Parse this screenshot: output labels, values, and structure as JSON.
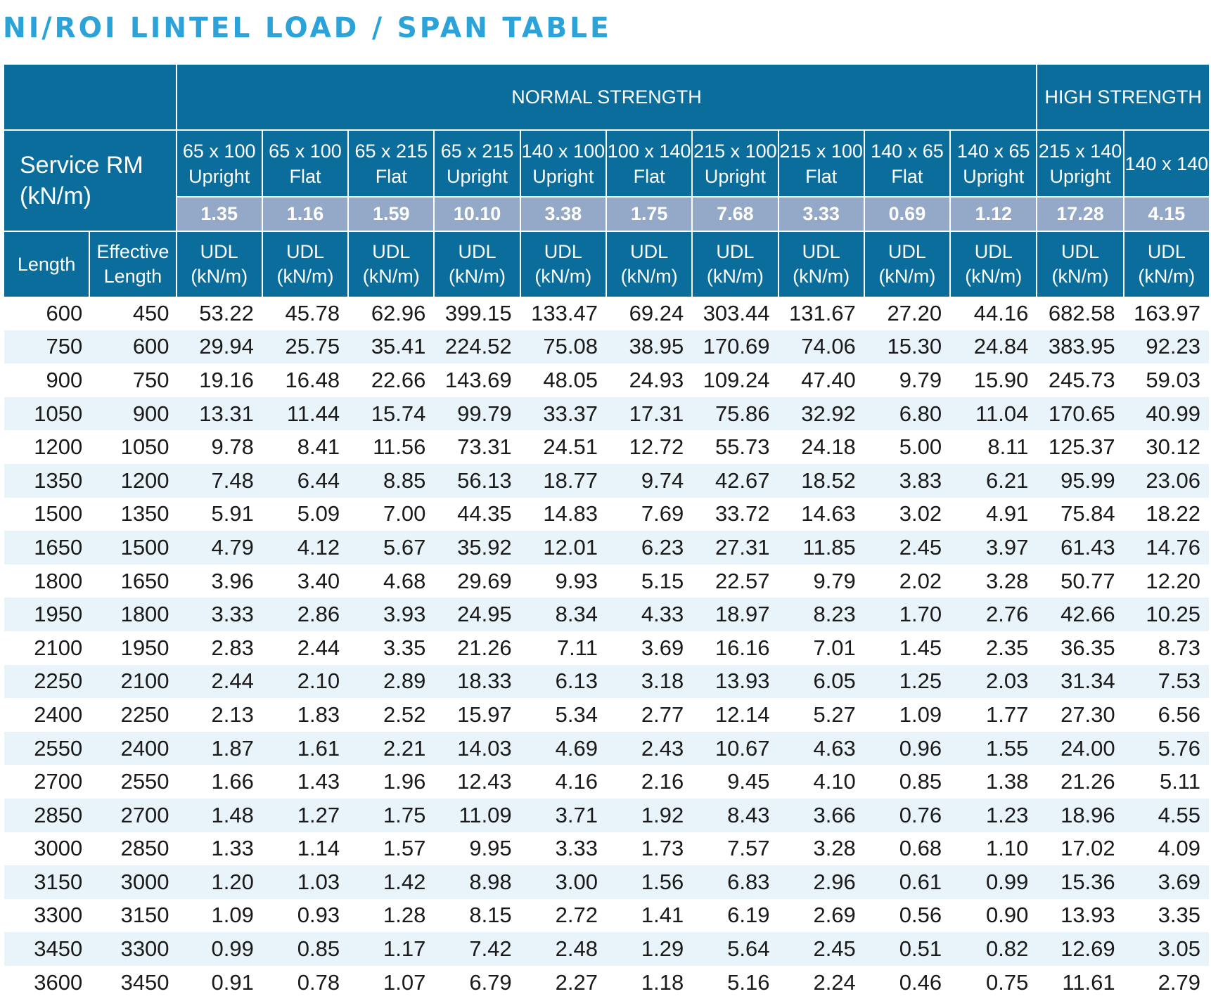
{
  "title": "NI/ROI LINTEL LOAD / SPAN TABLE",
  "colors": {
    "title": "#2ba3d9",
    "header": "#0b6d9c",
    "rm_row": "#93a9c7",
    "stripe": "#e9f3fa"
  },
  "header": {
    "normal_strength": "NORMAL STRENGTH",
    "high_strength": "HIGH STRENGTH",
    "service_rm_line1": "Service RM",
    "service_rm_line2": "(kN/m)",
    "length": "Length",
    "effective_line1": "Effective",
    "effective_line2": "Length",
    "udl_line1": "UDL",
    "udl_line2": "(kN/m)"
  },
  "columns": [
    {
      "size": "65 x 100",
      "orient": "Upright",
      "rm": "1.35"
    },
    {
      "size": "65 x 100",
      "orient": "Flat",
      "rm": "1.16"
    },
    {
      "size": "65 x 215",
      "orient": "Flat",
      "rm": "1.59"
    },
    {
      "size": "65 x 215",
      "orient": "Upright",
      "rm": "10.10"
    },
    {
      "size": "140 x 100",
      "orient": "Upright",
      "rm": "3.38"
    },
    {
      "size": "100 x 140",
      "orient": "Flat",
      "rm": "1.75"
    },
    {
      "size": "215 x 100",
      "orient": "Upright",
      "rm": "7.68"
    },
    {
      "size": "215 x 100",
      "orient": "Flat",
      "rm": "3.33"
    },
    {
      "size": "140 x 65",
      "orient": "Flat",
      "rm": "0.69"
    },
    {
      "size": "140 x 65",
      "orient": "Upright",
      "rm": "1.12"
    },
    {
      "size": "215 x 140",
      "orient": "Upright",
      "rm": "17.28"
    },
    {
      "size": "140 x 140",
      "orient": "",
      "rm": "4.15"
    }
  ],
  "rows": [
    [
      "600",
      "450",
      "53.22",
      "45.78",
      "62.96",
      "399.15",
      "133.47",
      "69.24",
      "303.44",
      "131.67",
      "27.20",
      "44.16",
      "682.58",
      "163.97"
    ],
    [
      "750",
      "600",
      "29.94",
      "25.75",
      "35.41",
      "224.52",
      "75.08",
      "38.95",
      "170.69",
      "74.06",
      "15.30",
      "24.84",
      "383.95",
      "92.23"
    ],
    [
      "900",
      "750",
      "19.16",
      "16.48",
      "22.66",
      "143.69",
      "48.05",
      "24.93",
      "109.24",
      "47.40",
      "9.79",
      "15.90",
      "245.73",
      "59.03"
    ],
    [
      "1050",
      "900",
      "13.31",
      "11.44",
      "15.74",
      "99.79",
      "33.37",
      "17.31",
      "75.86",
      "32.92",
      "6.80",
      "11.04",
      "170.65",
      "40.99"
    ],
    [
      "1200",
      "1050",
      "9.78",
      "8.41",
      "11.56",
      "73.31",
      "24.51",
      "12.72",
      "55.73",
      "24.18",
      "5.00",
      "8.11",
      "125.37",
      "30.12"
    ],
    [
      "1350",
      "1200",
      "7.48",
      "6.44",
      "8.85",
      "56.13",
      "18.77",
      "9.74",
      "42.67",
      "18.52",
      "3.83",
      "6.21",
      "95.99",
      "23.06"
    ],
    [
      "1500",
      "1350",
      "5.91",
      "5.09",
      "7.00",
      "44.35",
      "14.83",
      "7.69",
      "33.72",
      "14.63",
      "3.02",
      "4.91",
      "75.84",
      "18.22"
    ],
    [
      "1650",
      "1500",
      "4.79",
      "4.12",
      "5.67",
      "35.92",
      "12.01",
      "6.23",
      "27.31",
      "11.85",
      "2.45",
      "3.97",
      "61.43",
      "14.76"
    ],
    [
      "1800",
      "1650",
      "3.96",
      "3.40",
      "4.68",
      "29.69",
      "9.93",
      "5.15",
      "22.57",
      "9.79",
      "2.02",
      "3.28",
      "50.77",
      "12.20"
    ],
    [
      "1950",
      "1800",
      "3.33",
      "2.86",
      "3.93",
      "24.95",
      "8.34",
      "4.33",
      "18.97",
      "8.23",
      "1.70",
      "2.76",
      "42.66",
      "10.25"
    ],
    [
      "2100",
      "1950",
      "2.83",
      "2.44",
      "3.35",
      "21.26",
      "7.11",
      "3.69",
      "16.16",
      "7.01",
      "1.45",
      "2.35",
      "36.35",
      "8.73"
    ],
    [
      "2250",
      "2100",
      "2.44",
      "2.10",
      "2.89",
      "18.33",
      "6.13",
      "3.18",
      "13.93",
      "6.05",
      "1.25",
      "2.03",
      "31.34",
      "7.53"
    ],
    [
      "2400",
      "2250",
      "2.13",
      "1.83",
      "2.52",
      "15.97",
      "5.34",
      "2.77",
      "12.14",
      "5.27",
      "1.09",
      "1.77",
      "27.30",
      "6.56"
    ],
    [
      "2550",
      "2400",
      "1.87",
      "1.61",
      "2.21",
      "14.03",
      "4.69",
      "2.43",
      "10.67",
      "4.63",
      "0.96",
      "1.55",
      "24.00",
      "5.76"
    ],
    [
      "2700",
      "2550",
      "1.66",
      "1.43",
      "1.96",
      "12.43",
      "4.16",
      "2.16",
      "9.45",
      "4.10",
      "0.85",
      "1.38",
      "21.26",
      "5.11"
    ],
    [
      "2850",
      "2700",
      "1.48",
      "1.27",
      "1.75",
      "11.09",
      "3.71",
      "1.92",
      "8.43",
      "3.66",
      "0.76",
      "1.23",
      "18.96",
      "4.55"
    ],
    [
      "3000",
      "2850",
      "1.33",
      "1.14",
      "1.57",
      "9.95",
      "3.33",
      "1.73",
      "7.57",
      "3.28",
      "0.68",
      "1.10",
      "17.02",
      "4.09"
    ],
    [
      "3150",
      "3000",
      "1.20",
      "1.03",
      "1.42",
      "8.98",
      "3.00",
      "1.56",
      "6.83",
      "2.96",
      "0.61",
      "0.99",
      "15.36",
      "3.69"
    ],
    [
      "3300",
      "3150",
      "1.09",
      "0.93",
      "1.28",
      "8.15",
      "2.72",
      "1.41",
      "6.19",
      "2.69",
      "0.56",
      "0.90",
      "13.93",
      "3.35"
    ],
    [
      "3450",
      "3300",
      "0.99",
      "0.85",
      "1.17",
      "7.42",
      "2.48",
      "1.29",
      "5.64",
      "2.45",
      "0.51",
      "0.82",
      "12.69",
      "3.05"
    ],
    [
      "3600",
      "3450",
      "0.91",
      "0.78",
      "1.07",
      "6.79",
      "2.27",
      "1.18",
      "5.16",
      "2.24",
      "0.46",
      "0.75",
      "11.61",
      "2.79"
    ]
  ]
}
